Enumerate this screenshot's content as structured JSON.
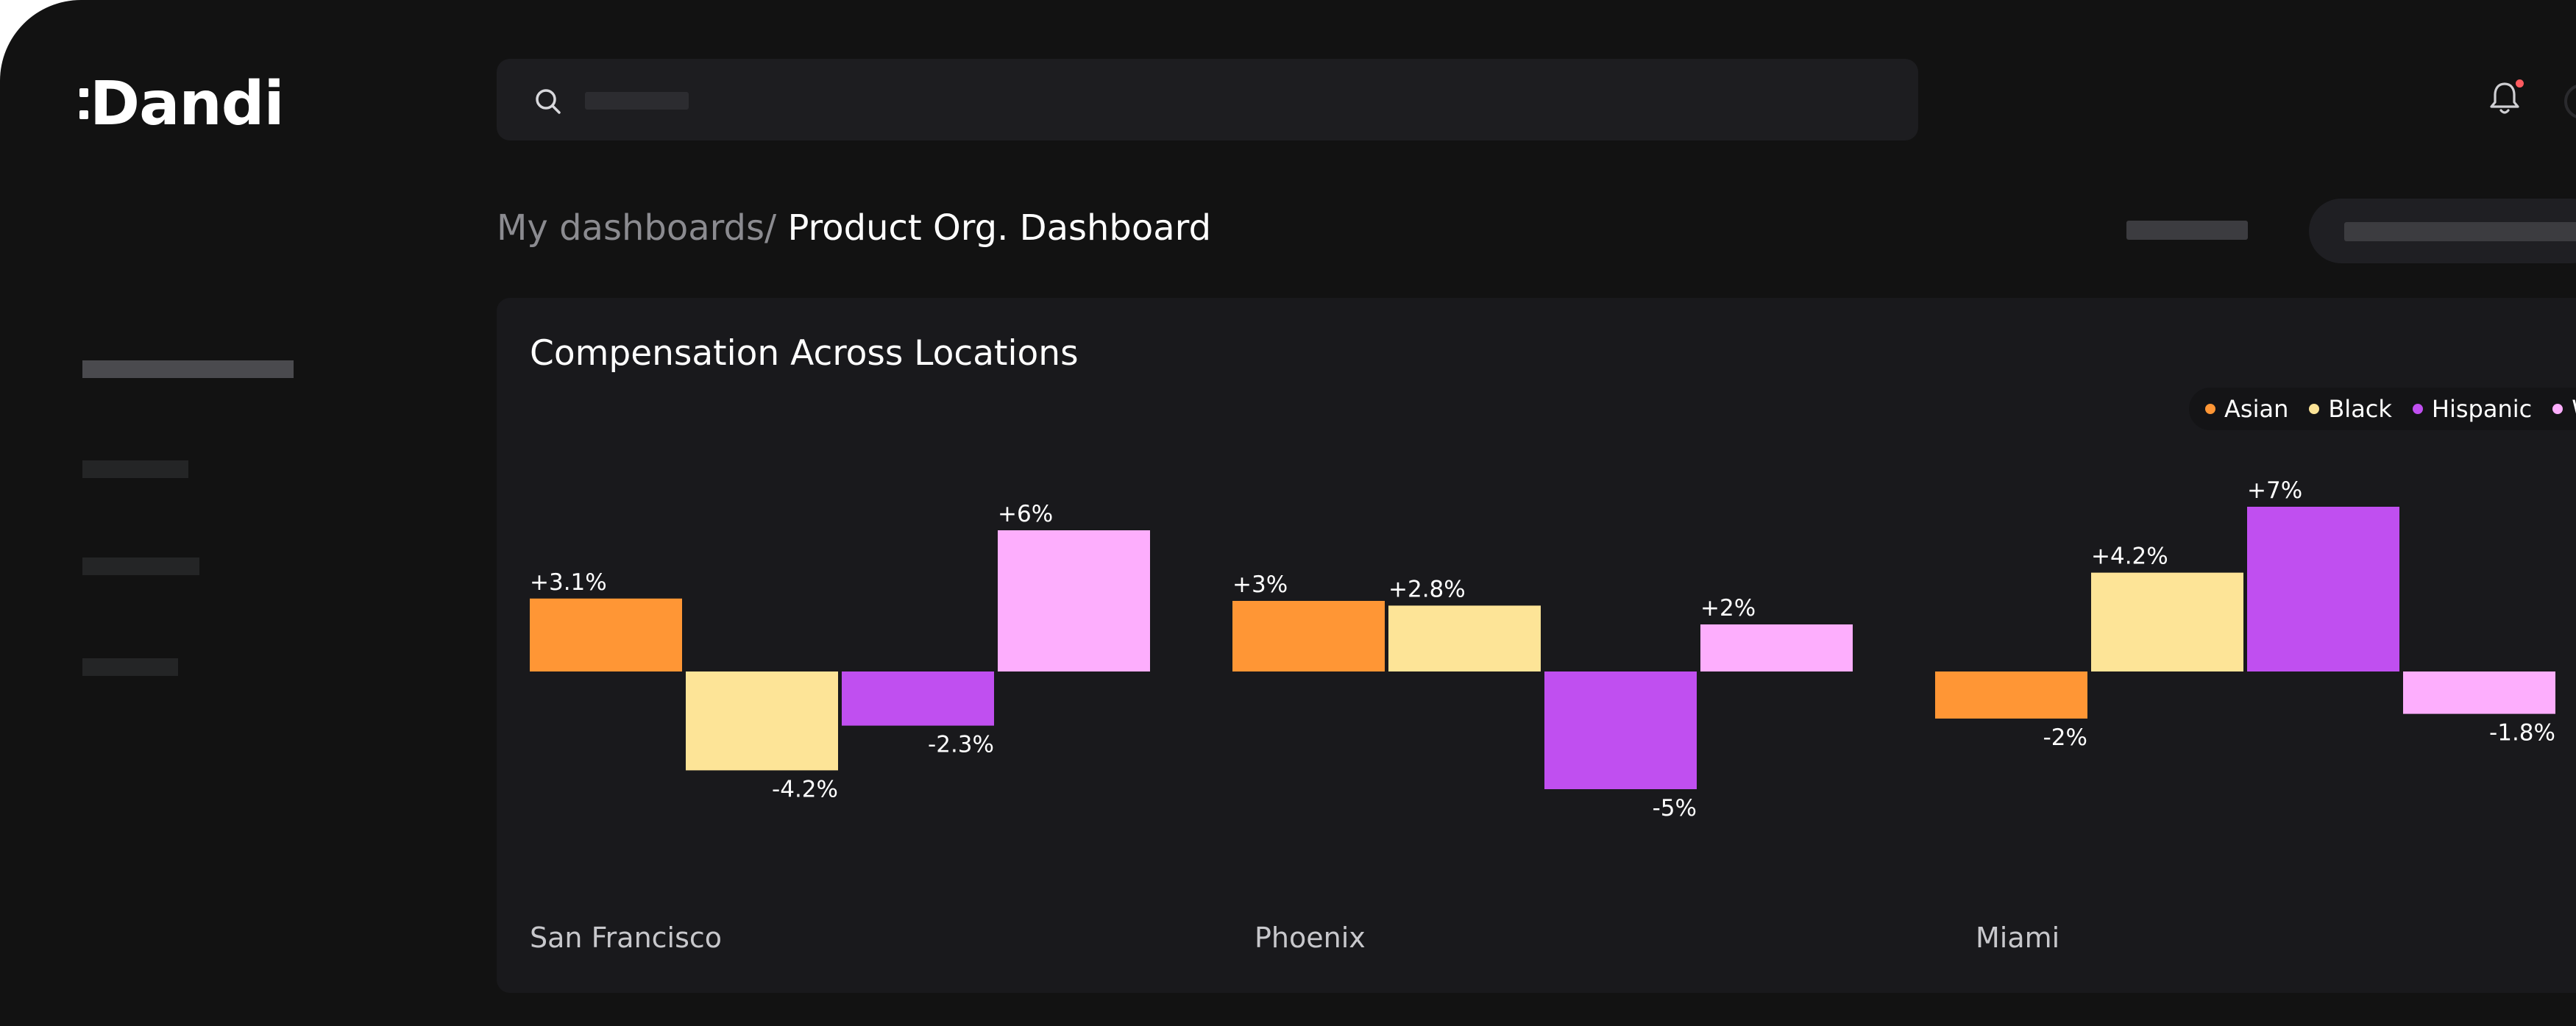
{
  "app": {
    "logo_text": "Dandi"
  },
  "breadcrumb": {
    "parent": "My dashboards/",
    "current": "Product Org. Dashboard"
  },
  "card": {
    "title": "Compensation Across Locations"
  },
  "colors": {
    "background": "#121212",
    "card": "#19191c",
    "Asian": "#ff9635",
    "Black": "#fde497",
    "Hispanic": "#c04ff0",
    "White": "#fdaefd"
  },
  "icons": {
    "search": "search-icon",
    "notifications": "bell-icon",
    "notification_badge": "red-dot"
  },
  "chart_data": {
    "type": "bar",
    "title": "Compensation Across Locations",
    "legend_position": "top-right",
    "grid": false,
    "categories": [
      "San Francisco",
      "Phoenix",
      "Miami"
    ],
    "ylim": [
      -8,
      8
    ],
    "series": [
      {
        "name": "Asian",
        "values": [
          3.1,
          3,
          -2
        ],
        "labels": [
          "+3.1%",
          "+3%",
          "-2%"
        ],
        "color": "#ff9635"
      },
      {
        "name": "Black",
        "values": [
          -4.2,
          2.8,
          4.2
        ],
        "labels": [
          "-4.2%",
          "+2.8%",
          "+4.2%"
        ],
        "color": "#fde497"
      },
      {
        "name": "Hispanic",
        "values": [
          -2.3,
          -5,
          7
        ],
        "labels": [
          "-2.3%",
          "-5%",
          "+7%"
        ],
        "color": "#c04ff0"
      },
      {
        "name": "White",
        "values": [
          6,
          2,
          -1.8
        ],
        "labels": [
          "+6%",
          "+2%",
          "-1.8%"
        ],
        "color": "#fdaefd"
      }
    ]
  }
}
